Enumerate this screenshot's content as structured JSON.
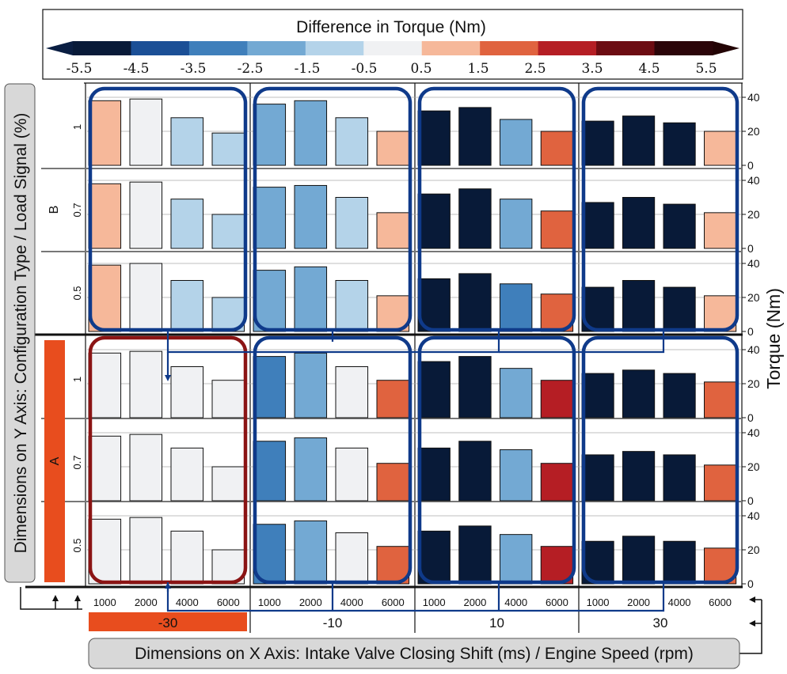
{
  "chart_data": {
    "type": "bar",
    "colorbar": {
      "title": "Difference in Torque (Nm)",
      "ticks": [
        "-5.5",
        "-4.5",
        "-3.5",
        "-2.5",
        "-1.5",
        "-0.5",
        "0.5",
        "1.5",
        "2.5",
        "3.5",
        "4.5",
        "5.5"
      ],
      "colors": [
        "#081a38",
        "#1b4f96",
        "#3f7fbb",
        "#73a9d3",
        "#b4d3e9",
        "#f0f1f3",
        "#f6b89a",
        "#e0633f",
        "#b51e24",
        "#6c0c12",
        "#2b0509"
      ],
      "arrow_left": "#0a1e42",
      "arrow_right": "#230405"
    },
    "x_axis": {
      "label": "Dimensions on X Axis: Intake Valve Closing Shift (ms) / Engine Speed (rpm)",
      "groups": [
        "-30",
        "-10",
        "10",
        "30"
      ],
      "highlighted_group": "-30",
      "categories": [
        "1000",
        "2000",
        "4000",
        "6000"
      ]
    },
    "y_axis": {
      "label": "Dimensions on Y Axis: Configuration Type / Load Signal (%)",
      "config_types": [
        "B",
        "A"
      ],
      "highlighted_config": "A",
      "load_signals": [
        "1",
        "0.7",
        "0.5"
      ]
    },
    "right_axis": {
      "label": "Torque (Nm)",
      "ticks": [
        "0",
        "20",
        "40"
      ],
      "ylim": [
        0,
        40
      ]
    },
    "panels": [
      {
        "config": "B",
        "load": "1",
        "groups": [
          {
            "shift": "-30",
            "values": [
              38,
              39,
              28,
              19
            ],
            "diffs": [
              1.0,
              -0.2,
              -1.0,
              -1.0
            ]
          },
          {
            "shift": "-10",
            "values": [
              36,
              38,
              28,
              20
            ],
            "diffs": [
              -2.0,
              -2.0,
              -1.0,
              1.0
            ]
          },
          {
            "shift": "10",
            "values": [
              32,
              34,
              27,
              20
            ],
            "diffs": [
              -5.5,
              -5.5,
              -2.0,
              2.0
            ]
          },
          {
            "shift": "30",
            "values": [
              26,
              29,
              25,
              20
            ],
            "diffs": [
              -5.5,
              -5.5,
              -5.5,
              1.0
            ]
          }
        ]
      },
      {
        "config": "B",
        "load": "0.7",
        "groups": [
          {
            "shift": "-30",
            "values": [
              38,
              39,
              29,
              20
            ],
            "diffs": [
              1.0,
              -0.2,
              -1.0,
              -1.0
            ]
          },
          {
            "shift": "-10",
            "values": [
              36,
              37,
              30,
              21
            ],
            "diffs": [
              -2.0,
              -2.0,
              -1.0,
              1.0
            ]
          },
          {
            "shift": "10",
            "values": [
              32,
              35,
              29,
              22
            ],
            "diffs": [
              -5.5,
              -5.5,
              -2.0,
              2.0
            ]
          },
          {
            "shift": "30",
            "values": [
              27,
              30,
              26,
              21
            ],
            "diffs": [
              -5.5,
              -5.5,
              -5.5,
              1.0
            ]
          }
        ]
      },
      {
        "config": "B",
        "load": "0.5",
        "groups": [
          {
            "shift": "-30",
            "values": [
              39,
              40,
              30,
              20
            ],
            "diffs": [
              1.0,
              -0.2,
              -1.0,
              -1.0
            ]
          },
          {
            "shift": "-10",
            "values": [
              36,
              38,
              30,
              21
            ],
            "diffs": [
              -2.0,
              -2.0,
              -1.0,
              1.0
            ]
          },
          {
            "shift": "10",
            "values": [
              31,
              34,
              28,
              22
            ],
            "diffs": [
              -5.5,
              -5.5,
              -3.0,
              2.0
            ]
          },
          {
            "shift": "30",
            "values": [
              26,
              30,
              26,
              21
            ],
            "diffs": [
              -5.5,
              -5.5,
              -5.5,
              1.0
            ]
          }
        ]
      },
      {
        "config": "A",
        "load": "1",
        "groups": [
          {
            "shift": "-30",
            "values": [
              38,
              39,
              30,
              22
            ],
            "diffs": [
              -0.2,
              -0.2,
              -0.2,
              -0.2
            ]
          },
          {
            "shift": "-10",
            "values": [
              36,
              38,
              30,
              22
            ],
            "diffs": [
              -3.0,
              -2.0,
              -0.2,
              2.0
            ]
          },
          {
            "shift": "10",
            "values": [
              33,
              36,
              29,
              22
            ],
            "diffs": [
              -5.5,
              -5.5,
              -2.0,
              3.0
            ]
          },
          {
            "shift": "30",
            "values": [
              26,
              28,
              26,
              21
            ],
            "diffs": [
              -5.5,
              -5.5,
              -5.5,
              2.0
            ]
          }
        ]
      },
      {
        "config": "A",
        "load": "0.7",
        "groups": [
          {
            "shift": "-30",
            "values": [
              38,
              39,
              31,
              20
            ],
            "diffs": [
              -0.2,
              -0.2,
              -0.2,
              -0.2
            ]
          },
          {
            "shift": "-10",
            "values": [
              35,
              37,
              31,
              22
            ],
            "diffs": [
              -3.0,
              -2.0,
              -0.2,
              2.0
            ]
          },
          {
            "shift": "10",
            "values": [
              31,
              35,
              30,
              22
            ],
            "diffs": [
              -5.5,
              -5.5,
              -2.0,
              3.0
            ]
          },
          {
            "shift": "30",
            "values": [
              27,
              29,
              27,
              21
            ],
            "diffs": [
              -5.5,
              -5.5,
              -5.5,
              2.0
            ]
          }
        ]
      },
      {
        "config": "A",
        "load": "0.5",
        "groups": [
          {
            "shift": "-30",
            "values": [
              38,
              39,
              31,
              20
            ],
            "diffs": [
              -0.2,
              -0.2,
              -0.2,
              -0.2
            ]
          },
          {
            "shift": "-10",
            "values": [
              35,
              37,
              30,
              22
            ],
            "diffs": [
              -3.0,
              -2.0,
              -0.2,
              2.0
            ]
          },
          {
            "shift": "10",
            "values": [
              31,
              34,
              29,
              22
            ],
            "diffs": [
              -5.5,
              -5.5,
              -2.0,
              3.0
            ]
          },
          {
            "shift": "30",
            "values": [
              25,
              28,
              25,
              21
            ],
            "diffs": [
              -5.5,
              -5.5,
              -5.5,
              2.0
            ]
          }
        ]
      }
    ],
    "highlight_boxes": [
      {
        "config": "B",
        "shift": "-30",
        "color": "#0f3a8a"
      },
      {
        "config": "B",
        "shift": "-10",
        "color": "#0f3a8a"
      },
      {
        "config": "B",
        "shift": "10",
        "color": "#0f3a8a"
      },
      {
        "config": "B",
        "shift": "30",
        "color": "#0f3a8a"
      },
      {
        "config": "A",
        "shift": "-30",
        "color": "#8b1414"
      },
      {
        "config": "A",
        "shift": "-10",
        "color": "#0f3a8a"
      },
      {
        "config": "A",
        "shift": "10",
        "color": "#0f3a8a"
      },
      {
        "config": "A",
        "shift": "30",
        "color": "#0f3a8a"
      }
    ],
    "grid": true
  }
}
